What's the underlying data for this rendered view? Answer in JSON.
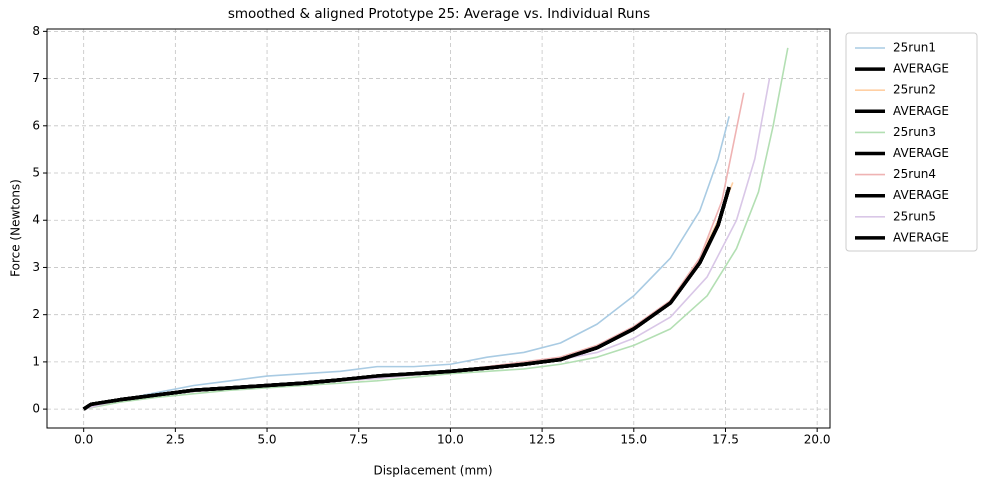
{
  "chart_data": {
    "type": "line",
    "title": "smoothed & aligned Prototype 25: Average vs. Individual Runs",
    "x_label": "Displacement (mm)",
    "y_label": "Force (Newtons)",
    "xlim": [
      -1.0,
      20.35
    ],
    "ylim": [
      -0.4,
      8.05
    ],
    "xticks": [
      {
        "value": 0,
        "label": "0.0"
      },
      {
        "value": 2.5,
        "label": "2.5"
      },
      {
        "value": 5,
        "label": "5.0"
      },
      {
        "value": 7.5,
        "label": "7.5"
      },
      {
        "value": 10,
        "label": "10.0"
      },
      {
        "value": 12.5,
        "label": "12.5"
      },
      {
        "value": 15,
        "label": "15.0"
      },
      {
        "value": 17.5,
        "label": "17.5"
      },
      {
        "value": 20,
        "label": "20.0"
      }
    ],
    "yticks": [
      0,
      1,
      2,
      3,
      4,
      5,
      6,
      7,
      8
    ],
    "grid": true,
    "legend": "outside-upper-right",
    "series": [
      {
        "name": "25run1",
        "color": "#a9cbe3",
        "x": [
          0,
          0.3,
          1,
          2,
          3,
          4,
          5,
          6,
          7,
          8,
          9,
          10,
          11,
          12,
          13,
          14,
          15,
          16,
          16.8,
          17.3,
          17.6
        ],
        "values": [
          0,
          0.1,
          0.2,
          0.35,
          0.5,
          0.6,
          0.7,
          0.75,
          0.8,
          0.9,
          0.9,
          0.95,
          1.1,
          1.2,
          1.4,
          1.8,
          2.4,
          3.2,
          4.2,
          5.3,
          6.2
        ]
      },
      {
        "name": "AVERAGE",
        "color": "#000000",
        "x": [
          0,
          0.2,
          1,
          2,
          3,
          4,
          5,
          6,
          7,
          8,
          9,
          10,
          11,
          12,
          13,
          14,
          15,
          16,
          16.8,
          17.3,
          17.6
        ],
        "values": [
          0,
          0.1,
          0.2,
          0.3,
          0.4,
          0.45,
          0.5,
          0.55,
          0.62,
          0.7,
          0.75,
          0.8,
          0.87,
          0.95,
          1.05,
          1.3,
          1.7,
          2.25,
          3.1,
          3.9,
          4.7
        ]
      },
      {
        "name": "25run2",
        "color": "#ffcfa3",
        "x": [
          0,
          1,
          2,
          4,
          6,
          8,
          10,
          12,
          13,
          14,
          15,
          16,
          16.8,
          17.3,
          17.7
        ],
        "values": [
          0,
          0.2,
          0.3,
          0.45,
          0.55,
          0.7,
          0.8,
          0.95,
          1.1,
          1.35,
          1.7,
          2.3,
          3.2,
          4.0,
          4.8
        ]
      },
      {
        "name": "AVERAGE",
        "color": "#000000",
        "x": [
          0,
          0.2,
          1,
          2,
          3,
          4,
          5,
          6,
          7,
          8,
          9,
          10,
          11,
          12,
          13,
          14,
          15,
          16,
          16.8,
          17.3,
          17.6
        ],
        "values": [
          0,
          0.1,
          0.2,
          0.3,
          0.4,
          0.45,
          0.5,
          0.55,
          0.62,
          0.7,
          0.75,
          0.8,
          0.87,
          0.95,
          1.05,
          1.3,
          1.7,
          2.25,
          3.1,
          3.9,
          4.7
        ]
      },
      {
        "name": "25run3",
        "color": "#b3dfb3",
        "x": [
          0,
          1,
          2,
          4,
          6,
          8,
          10,
          12,
          13,
          14,
          15,
          16,
          17,
          17.8,
          18.4,
          18.8,
          19.2
        ],
        "values": [
          0,
          0.15,
          0.25,
          0.4,
          0.5,
          0.6,
          0.75,
          0.85,
          0.95,
          1.1,
          1.35,
          1.7,
          2.4,
          3.4,
          4.6,
          6.0,
          7.65
        ]
      },
      {
        "name": "AVERAGE",
        "color": "#000000",
        "x": [
          0,
          0.2,
          1,
          2,
          3,
          4,
          5,
          6,
          7,
          8,
          9,
          10,
          11,
          12,
          13,
          14,
          15,
          16,
          16.8,
          17.3,
          17.6
        ],
        "values": [
          0,
          0.1,
          0.2,
          0.3,
          0.4,
          0.45,
          0.5,
          0.55,
          0.62,
          0.7,
          0.75,
          0.8,
          0.87,
          0.95,
          1.05,
          1.3,
          1.7,
          2.25,
          3.1,
          3.9,
          4.7
        ]
      },
      {
        "name": "25run4",
        "color": "#efb3b3",
        "x": [
          0,
          1,
          2,
          4,
          6,
          8,
          10,
          12,
          13,
          14,
          15,
          16,
          16.8,
          17.4,
          18
        ],
        "values": [
          0,
          0.2,
          0.3,
          0.45,
          0.55,
          0.65,
          0.8,
          1.0,
          1.1,
          1.35,
          1.75,
          2.3,
          3.2,
          4.4,
          6.7
        ]
      },
      {
        "name": "AVERAGE",
        "color": "#000000",
        "x": [
          0,
          0.2,
          1,
          2,
          3,
          4,
          5,
          6,
          7,
          8,
          9,
          10,
          11,
          12,
          13,
          14,
          15,
          16,
          16.8,
          17.3,
          17.6
        ],
        "values": [
          0,
          0.1,
          0.2,
          0.3,
          0.4,
          0.45,
          0.5,
          0.55,
          0.62,
          0.7,
          0.75,
          0.8,
          0.87,
          0.95,
          1.05,
          1.3,
          1.7,
          2.25,
          3.1,
          3.9,
          4.7
        ]
      },
      {
        "name": "25run5",
        "color": "#d9c7e7",
        "x": [
          0,
          1,
          2,
          4,
          6,
          8,
          10,
          12,
          13,
          14,
          15,
          16,
          17,
          17.8,
          18.3,
          18.7
        ],
        "values": [
          0,
          0.2,
          0.3,
          0.45,
          0.55,
          0.65,
          0.8,
          0.95,
          1.05,
          1.2,
          1.5,
          1.95,
          2.8,
          4.0,
          5.3,
          7.0
        ]
      },
      {
        "name": "AVERAGE",
        "color": "#000000",
        "x": [
          0,
          0.2,
          1,
          2,
          3,
          4,
          5,
          6,
          7,
          8,
          9,
          10,
          11,
          12,
          13,
          14,
          15,
          16,
          16.8,
          17.3,
          17.6
        ],
        "values": [
          0,
          0.1,
          0.2,
          0.3,
          0.4,
          0.45,
          0.5,
          0.55,
          0.62,
          0.7,
          0.75,
          0.8,
          0.87,
          0.95,
          1.05,
          1.3,
          1.7,
          2.25,
          3.1,
          3.9,
          4.7
        ]
      }
    ]
  }
}
